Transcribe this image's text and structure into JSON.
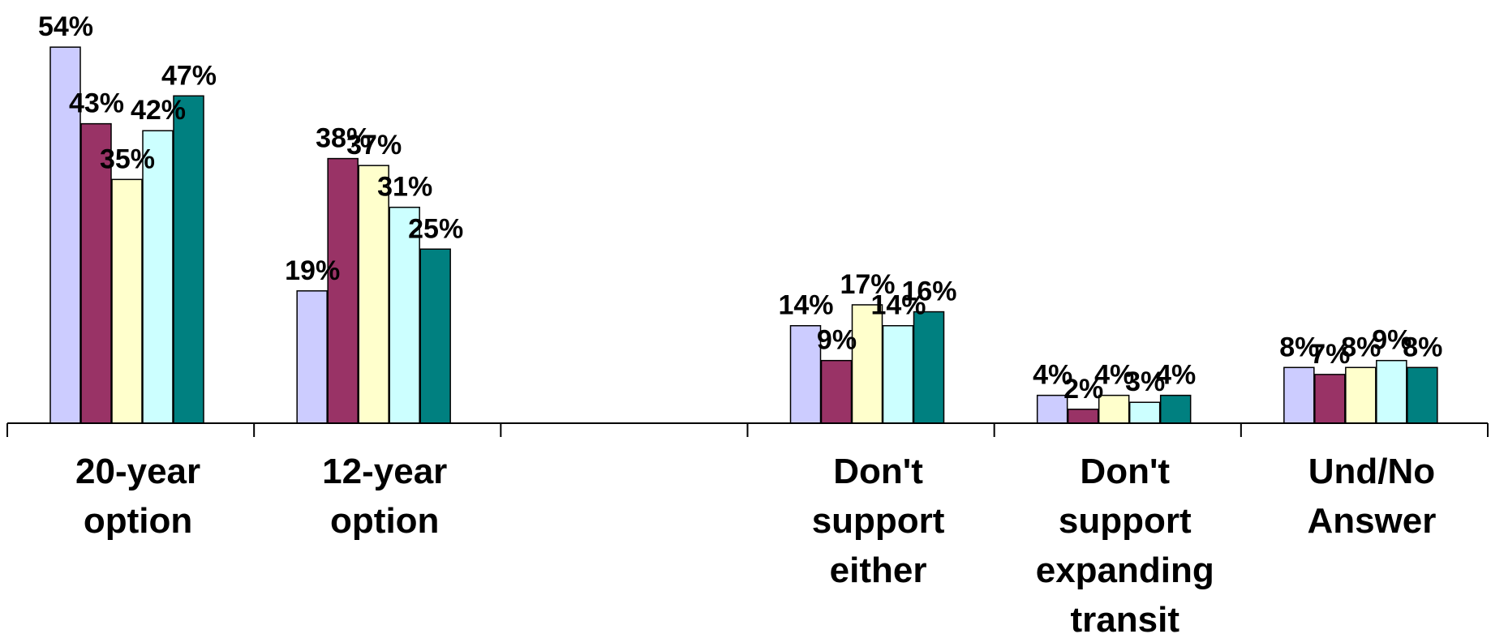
{
  "chart_data": {
    "type": "bar",
    "categories": [
      [
        "20-year",
        "option"
      ],
      [
        "12-year",
        "option"
      ],
      [],
      [
        "Don't",
        "support",
        "either"
      ],
      [
        "Don't",
        "support",
        "expanding",
        "transit"
      ],
      [
        "Und/No",
        "Answer"
      ]
    ],
    "series": [
      {
        "color": "#ccccff",
        "values": [
          54,
          19,
          null,
          14,
          4,
          8
        ]
      },
      {
        "color": "#993366",
        "values": [
          43,
          38,
          null,
          9,
          2,
          7
        ]
      },
      {
        "color": "#ffffcc",
        "values": [
          35,
          37,
          null,
          17,
          4,
          8
        ]
      },
      {
        "color": "#ccffff",
        "values": [
          42,
          31,
          null,
          14,
          3,
          9
        ]
      },
      {
        "color": "#008080",
        "values": [
          47,
          25,
          null,
          16,
          4,
          8
        ]
      }
    ],
    "value_suffix": "%",
    "title": "",
    "xlabel": "",
    "ylabel": "",
    "ylim": [
      0,
      60
    ],
    "grid": false,
    "legend": "none"
  }
}
